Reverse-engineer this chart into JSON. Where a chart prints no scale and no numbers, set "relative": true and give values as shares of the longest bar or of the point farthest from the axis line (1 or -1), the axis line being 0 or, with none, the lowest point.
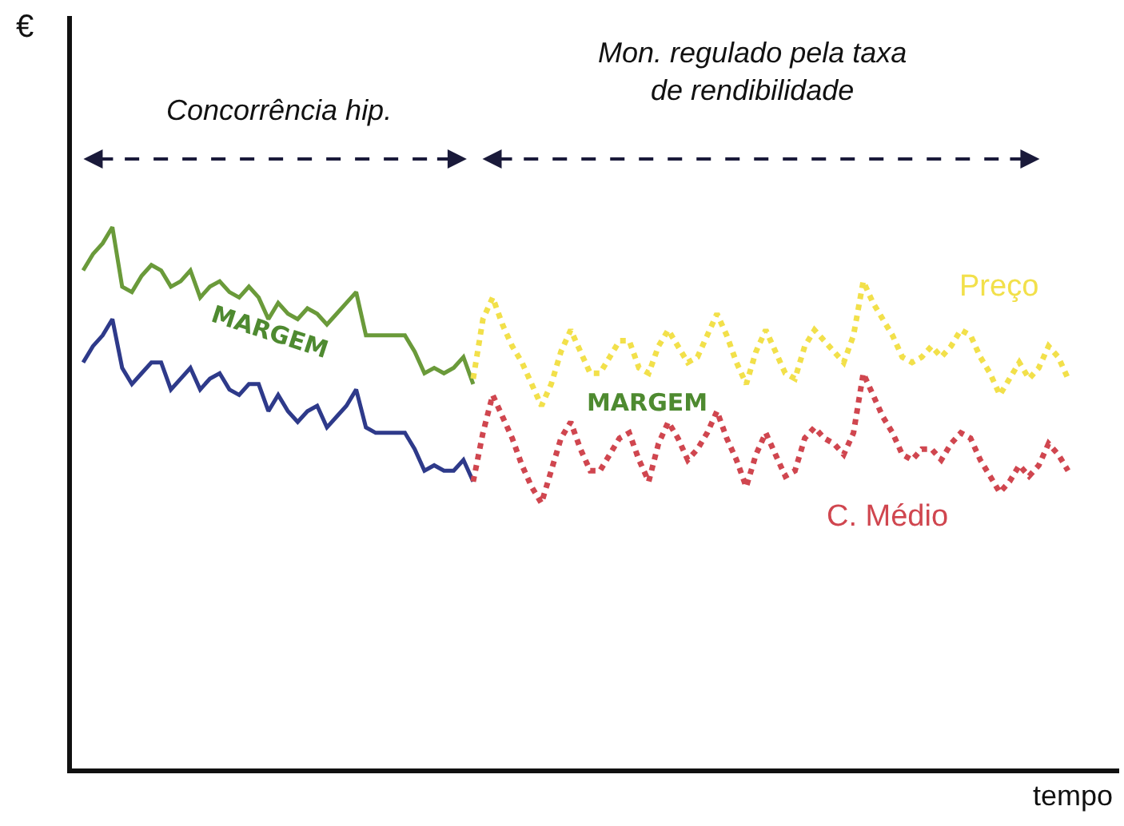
{
  "chart_data": {
    "type": "line",
    "relative": true,
    "xlabel": "tempo",
    "legend": false,
    "marker": "none",
    "categories": [
      null,
      null,
      null,
      null,
      null,
      null,
      null,
      null,
      null,
      null,
      null,
      null,
      null,
      null,
      null,
      null,
      null,
      null,
      null,
      null,
      null,
      null,
      null,
      null,
      null,
      null,
      null,
      null,
      null,
      null,
      null,
      null,
      null,
      null,
      null,
      null,
      null,
      null,
      null,
      null,
      null,
      null,
      null,
      null,
      null,
      null,
      null,
      null,
      null,
      null,
      null,
      null,
      null,
      null,
      null,
      null,
      null,
      null,
      null,
      null,
      null,
      null,
      null,
      null,
      null,
      null,
      null,
      null,
      null,
      null,
      null,
      null,
      null,
      null,
      null,
      null,
      null,
      null,
      null,
      null,
      null,
      null,
      null,
      null,
      null,
      null,
      null,
      null,
      null,
      null,
      null,
      null,
      null,
      null,
      null,
      null,
      null,
      null,
      null,
      null,
      null,
      null
    ],
    "series": [
      {
        "color": "#6a9a3a",
        "line_style": "solid",
        "values": [
          0.92,
          0.95,
          0.97,
          1.0,
          0.89,
          0.88,
          0.91,
          0.93,
          0.92,
          0.89,
          0.9,
          0.92,
          0.87,
          0.89,
          0.9,
          0.88,
          0.87,
          0.89,
          0.87,
          0.83,
          0.86,
          0.84,
          0.83,
          0.85,
          0.84,
          0.82,
          0.84,
          0.86,
          0.88,
          0.8,
          0.8,
          0.8,
          0.8,
          0.8,
          0.77,
          0.73,
          0.74,
          0.73,
          0.74,
          0.76,
          0.71,
          null,
          null,
          null,
          null,
          null,
          null,
          null,
          null,
          null,
          null,
          null,
          null,
          null,
          null,
          null,
          null,
          null,
          null,
          null,
          null,
          null,
          null,
          null,
          null,
          null,
          null,
          null,
          null,
          null,
          null,
          null,
          null,
          null,
          null,
          null,
          null,
          null,
          null,
          null,
          null,
          null,
          null,
          null,
          null,
          null,
          null,
          null,
          null,
          null,
          null,
          null,
          null,
          null,
          null,
          null,
          null,
          null,
          null,
          null,
          null,
          null
        ]
      },
      {
        "color": "#2e3a8a",
        "line_style": "solid",
        "values": [
          0.75,
          0.78,
          0.8,
          0.83,
          0.74,
          0.71,
          0.73,
          0.75,
          0.75,
          0.7,
          0.72,
          0.74,
          0.7,
          0.72,
          0.73,
          0.7,
          0.69,
          0.71,
          0.71,
          0.66,
          0.69,
          0.66,
          0.64,
          0.66,
          0.67,
          0.63,
          0.65,
          0.67,
          0.7,
          0.63,
          0.62,
          0.62,
          0.62,
          0.62,
          0.59,
          0.55,
          0.56,
          0.55,
          0.55,
          0.57,
          0.53,
          null,
          null,
          null,
          null,
          null,
          null,
          null,
          null,
          null,
          null,
          null,
          null,
          null,
          null,
          null,
          null,
          null,
          null,
          null,
          null,
          null,
          null,
          null,
          null,
          null,
          null,
          null,
          null,
          null,
          null,
          null,
          null,
          null,
          null,
          null,
          null,
          null,
          null,
          null,
          null,
          null,
          null,
          null,
          null,
          null,
          null,
          null,
          null,
          null,
          null,
          null,
          null,
          null,
          null,
          null,
          null,
          null,
          null,
          null,
          null,
          null
        ]
      },
      {
        "name": "Preço",
        "color": "#f2e04a",
        "line_style": "dotted",
        "values": [
          null,
          null,
          null,
          null,
          null,
          null,
          null,
          null,
          null,
          null,
          null,
          null,
          null,
          null,
          null,
          null,
          null,
          null,
          null,
          null,
          null,
          null,
          null,
          null,
          null,
          null,
          null,
          null,
          null,
          null,
          null,
          null,
          null,
          null,
          null,
          null,
          null,
          null,
          null,
          null,
          0.72,
          0.83,
          0.87,
          0.82,
          0.78,
          0.75,
          0.71,
          0.67,
          0.71,
          0.77,
          0.81,
          0.77,
          0.73,
          0.73,
          0.76,
          0.79,
          0.79,
          0.74,
          0.73,
          0.78,
          0.81,
          0.78,
          0.75,
          0.76,
          0.8,
          0.84,
          0.8,
          0.75,
          0.71,
          0.77,
          0.81,
          0.77,
          0.73,
          0.72,
          0.78,
          0.81,
          0.79,
          0.77,
          0.75,
          0.8,
          0.9,
          0.86,
          0.83,
          0.8,
          0.76,
          0.75,
          0.76,
          0.78,
          0.76,
          0.78,
          0.81,
          0.8,
          0.76,
          0.73,
          0.69,
          0.72,
          0.75,
          0.72,
          0.74,
          0.78,
          0.76,
          0.72
        ]
      },
      {
        "name": "C. Médio",
        "color": "#d0464f",
        "line_style": "dotted",
        "values": [
          null,
          null,
          null,
          null,
          null,
          null,
          null,
          null,
          null,
          null,
          null,
          null,
          null,
          null,
          null,
          null,
          null,
          null,
          null,
          null,
          null,
          null,
          null,
          null,
          null,
          null,
          null,
          null,
          null,
          null,
          null,
          null,
          null,
          null,
          null,
          null,
          null,
          null,
          null,
          null,
          0.53,
          0.62,
          0.69,
          0.65,
          0.61,
          0.56,
          0.52,
          0.49,
          0.55,
          0.61,
          0.64,
          0.59,
          0.55,
          0.55,
          0.58,
          0.61,
          0.62,
          0.57,
          0.53,
          0.6,
          0.64,
          0.61,
          0.57,
          0.59,
          0.62,
          0.66,
          0.61,
          0.57,
          0.52,
          0.58,
          0.62,
          0.58,
          0.54,
          0.55,
          0.61,
          0.63,
          0.61,
          0.6,
          0.58,
          0.62,
          0.73,
          0.69,
          0.65,
          0.62,
          0.58,
          0.57,
          0.59,
          0.59,
          0.57,
          0.6,
          0.62,
          0.61,
          0.57,
          0.54,
          0.51,
          0.53,
          0.56,
          0.54,
          0.56,
          0.6,
          0.58,
          0.55
        ]
      }
    ],
    "annotations": [
      "Concorrência hip.",
      "Mon. regulado pela taxa\nde rendibilidade",
      "MARGEM",
      "MARGEM",
      "€"
    ]
  }
}
